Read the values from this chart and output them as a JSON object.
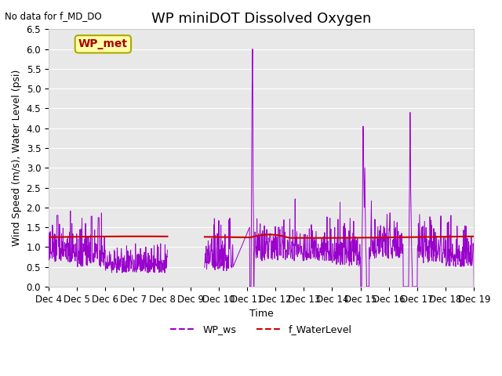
{
  "title": "WP miniDOT Dissolved Oxygen",
  "top_left_text": "No data for f_MD_DO",
  "ylabel": "Wind Speed (m/s), Water Level (psi)",
  "xlabel": "Time",
  "box_label": "WP_met",
  "box_facecolor": "#ffffaa",
  "box_edgecolor": "#aaaa00",
  "box_textcolor": "#aa0000",
  "ylim": [
    0.0,
    6.5
  ],
  "yticks": [
    0.0,
    0.5,
    1.0,
    1.5,
    2.0,
    2.5,
    3.0,
    3.5,
    4.0,
    4.5,
    5.0,
    5.5,
    6.0,
    6.5
  ],
  "xtick_labels": [
    "Dec 4",
    "Dec 5",
    "Dec 6",
    "Dec 7",
    "Dec 8",
    "Dec 9",
    "Dec 10",
    "Dec 11",
    "Dec 12",
    "Dec 13",
    "Dec 14",
    "Dec 15",
    "Dec 16",
    "Dec 17",
    "Dec 18",
    "Dec 19"
  ],
  "wp_ws_color": "#9900cc",
  "f_waterlevel_color": "#cc0000",
  "background_color": "#e8e8e8",
  "legend_ws_label": "WP_ws",
  "legend_wl_label": "f_WaterLevel",
  "title_fontsize": 13,
  "label_fontsize": 9,
  "tick_fontsize": 8.5
}
